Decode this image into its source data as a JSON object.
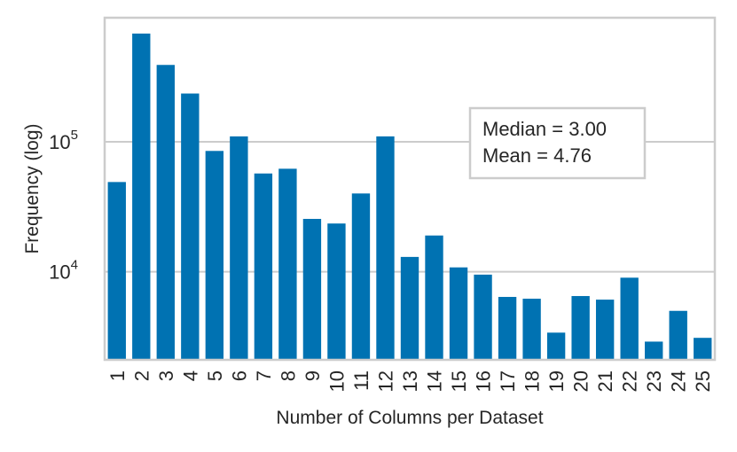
{
  "chart_data": {
    "type": "bar",
    "x_label": "Number of Columns per Dataset",
    "y_label": "Frequency (log)",
    "y_scale": "log",
    "ylim": [
      2100,
      900000
    ],
    "grid": "horizontal",
    "categories": [
      "1",
      "2",
      "3",
      "4",
      "5",
      "6",
      "7",
      "8",
      "9",
      "10",
      "11",
      "12",
      "13",
      "14",
      "15",
      "16",
      "17",
      "18",
      "19",
      "20",
      "21",
      "22",
      "23",
      "24",
      "25"
    ],
    "values": [
      49000,
      680000,
      390000,
      235000,
      85000,
      110000,
      57000,
      62000,
      25500,
      23500,
      40000,
      110000,
      13000,
      19000,
      10800,
      9500,
      6400,
      6200,
      3400,
      6500,
      6100,
      9000,
      2900,
      5000,
      3100
    ],
    "y_ticks": [
      {
        "value": 10000,
        "base": "10",
        "exp": "4"
      },
      {
        "value": 100000,
        "base": "10",
        "exp": "5"
      }
    ],
    "annotation": {
      "lines": [
        "Median = 3.00",
        "Mean = 4.76"
      ],
      "placement": "upper-right"
    },
    "colors": {
      "bar": "#0072b2",
      "grid": "#cccccc",
      "frame": "#cccccc",
      "text": "#262626"
    }
  }
}
